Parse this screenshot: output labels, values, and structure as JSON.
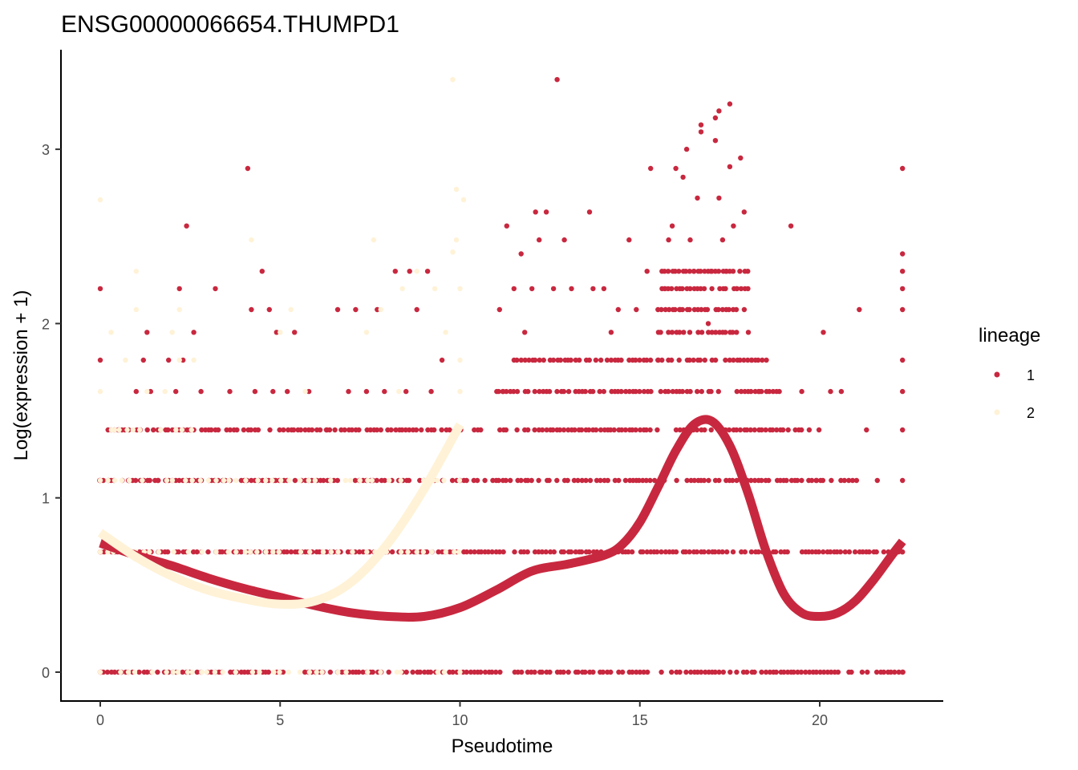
{
  "chart_data": {
    "type": "scatter",
    "title": "ENSG00000066654.THUMPD1",
    "xlabel": "Pseudotime",
    "ylabel": "Log(expression + 1)",
    "xlim": [
      -1.1,
      23.4
    ],
    "ylim": [
      -0.17,
      3.56
    ],
    "x_ticks": [
      "0",
      "5",
      "10",
      "15",
      "20"
    ],
    "y_ticks": [
      "0",
      "1",
      "2",
      "3"
    ],
    "grid": false,
    "legend": {
      "title": "lineage",
      "position": "right"
    },
    "series": [
      {
        "name": "1",
        "color": "#C8283F",
        "points_description": "scatter of cells on lineage 1 (pseudotime 0-22.3)",
        "points": [
          [
            0.0,
            2.2
          ],
          [
            0.0,
            1.79
          ],
          [
            0.0,
            1.1
          ],
          [
            0.0,
            0.69
          ],
          [
            0.0,
            0.0
          ],
          [
            0.5,
            1.39
          ],
          [
            0.8,
            1.1
          ],
          [
            1.0,
            1.61
          ],
          [
            1.2,
            1.79
          ],
          [
            1.3,
            1.95
          ],
          [
            1.4,
            1.61
          ],
          [
            1.6,
            1.1
          ],
          [
            1.8,
            0.69
          ],
          [
            1.9,
            1.79
          ],
          [
            2.1,
            1.61
          ],
          [
            2.2,
            2.2
          ],
          [
            2.3,
            1.79
          ],
          [
            2.4,
            2.56
          ],
          [
            2.5,
            1.39
          ],
          [
            2.6,
            1.95
          ],
          [
            2.8,
            1.61
          ],
          [
            3.2,
            2.2
          ],
          [
            3.6,
            1.61
          ],
          [
            4.1,
            2.89
          ],
          [
            4.2,
            2.08
          ],
          [
            4.5,
            2.3
          ],
          [
            4.3,
            1.61
          ],
          [
            4.7,
            2.08
          ],
          [
            4.9,
            1.95
          ],
          [
            4.8,
            1.61
          ],
          [
            5.2,
            1.61
          ],
          [
            5.4,
            1.95
          ],
          [
            5.8,
            1.61
          ],
          [
            6.3,
            1.39
          ],
          [
            6.6,
            2.08
          ],
          [
            6.9,
            1.61
          ],
          [
            7.1,
            2.08
          ],
          [
            7.4,
            1.61
          ],
          [
            7.7,
            2.08
          ],
          [
            7.9,
            1.61
          ],
          [
            8.2,
            2.3
          ],
          [
            8.5,
            1.61
          ],
          [
            8.6,
            2.3
          ],
          [
            8.8,
            2.08
          ],
          [
            9.1,
            2.3
          ],
          [
            9.2,
            1.61
          ],
          [
            9.5,
            1.79
          ],
          [
            11.1,
            2.08
          ],
          [
            11.2,
            1.61
          ],
          [
            11.3,
            2.56
          ],
          [
            11.5,
            2.2
          ],
          [
            11.7,
            2.4
          ],
          [
            11.8,
            1.95
          ],
          [
            12.0,
            2.2
          ],
          [
            12.1,
            2.64
          ],
          [
            12.2,
            2.48
          ],
          [
            12.4,
            2.64
          ],
          [
            12.6,
            2.2
          ],
          [
            12.7,
            3.4
          ],
          [
            12.9,
            2.48
          ],
          [
            13.0,
            1.79
          ],
          [
            13.1,
            2.2
          ],
          [
            13.4,
            1.61
          ],
          [
            13.6,
            2.64
          ],
          [
            13.7,
            2.2
          ],
          [
            14.0,
            2.2
          ],
          [
            14.2,
            1.95
          ],
          [
            14.4,
            2.08
          ],
          [
            14.7,
            2.48
          ],
          [
            14.9,
            2.08
          ],
          [
            15.2,
            2.3
          ],
          [
            15.3,
            2.89
          ],
          [
            15.5,
            1.79
          ],
          [
            15.7,
            2.2
          ],
          [
            15.8,
            2.48
          ],
          [
            15.9,
            2.56
          ],
          [
            16.0,
            2.89
          ],
          [
            16.1,
            2.08
          ],
          [
            16.2,
            2.84
          ],
          [
            16.3,
            3.0
          ],
          [
            16.4,
            2.48
          ],
          [
            16.5,
            2.3
          ],
          [
            16.6,
            2.72
          ],
          [
            16.7,
            3.1
          ],
          [
            16.7,
            3.14
          ],
          [
            16.9,
            2.0
          ],
          [
            17.0,
            2.3
          ],
          [
            17.1,
            3.05
          ],
          [
            17.1,
            3.18
          ],
          [
            17.2,
            3.22
          ],
          [
            17.2,
            2.72
          ],
          [
            17.3,
            2.48
          ],
          [
            17.4,
            2.3
          ],
          [
            17.5,
            3.26
          ],
          [
            17.5,
            2.9
          ],
          [
            17.6,
            2.56
          ],
          [
            17.7,
            2.2
          ],
          [
            17.8,
            2.95
          ],
          [
            17.9,
            2.64
          ],
          [
            18.0,
            2.3
          ],
          [
            18.1,
            1.79
          ],
          [
            18.3,
            1.61
          ],
          [
            18.8,
            1.61
          ],
          [
            19.2,
            2.56
          ],
          [
            19.5,
            1.61
          ],
          [
            19.9,
            1.1
          ],
          [
            20.1,
            1.95
          ],
          [
            20.3,
            1.61
          ],
          [
            20.6,
            1.61
          ],
          [
            21.1,
            2.08
          ],
          [
            21.3,
            1.39
          ],
          [
            21.6,
            1.1
          ],
          [
            22.3,
            2.89
          ],
          [
            22.3,
            2.4
          ],
          [
            22.3,
            2.3
          ],
          [
            22.3,
            2.2
          ],
          [
            22.3,
            2.08
          ],
          [
            22.3,
            1.79
          ],
          [
            22.3,
            1.61
          ],
          [
            22.3,
            1.39
          ],
          [
            22.3,
            1.1
          ],
          [
            22.3,
            0.69
          ],
          [
            22.3,
            0.0
          ]
        ]
      },
      {
        "name": "2",
        "color": "#FFF2D6",
        "points_description": "scatter of cells on lineage 2 (pseudotime 0-10.1)",
        "points": [
          [
            0.0,
            2.71
          ],
          [
            0.0,
            1.61
          ],
          [
            0.0,
            1.1
          ],
          [
            0.0,
            0.69
          ],
          [
            0.0,
            0.0
          ],
          [
            0.3,
            1.95
          ],
          [
            0.4,
            1.39
          ],
          [
            0.7,
            1.79
          ],
          [
            1.0,
            2.3
          ],
          [
            1.0,
            2.08
          ],
          [
            1.1,
            1.39
          ],
          [
            1.3,
            1.61
          ],
          [
            1.8,
            1.61
          ],
          [
            2.0,
            1.95
          ],
          [
            2.2,
            2.08
          ],
          [
            2.2,
            1.79
          ],
          [
            2.6,
            1.79
          ],
          [
            4.2,
            2.48
          ],
          [
            4.6,
            1.1
          ],
          [
            4.8,
            0.69
          ],
          [
            5.0,
            1.95
          ],
          [
            5.3,
            2.08
          ],
          [
            5.7,
            1.61
          ],
          [
            7.4,
            1.95
          ],
          [
            7.6,
            2.48
          ],
          [
            7.8,
            2.08
          ],
          [
            8.3,
            1.61
          ],
          [
            8.4,
            2.2
          ],
          [
            8.8,
            2.3
          ],
          [
            9.3,
            2.2
          ],
          [
            9.6,
            1.95
          ],
          [
            9.8,
            3.4
          ],
          [
            9.8,
            2.41
          ],
          [
            9.9,
            2.48
          ],
          [
            9.9,
            2.77
          ],
          [
            10.0,
            2.2
          ],
          [
            10.0,
            1.61
          ],
          [
            10.1,
            2.71
          ],
          [
            10.0,
            1.79
          ],
          [
            10.0,
            0.0
          ]
        ]
      }
    ],
    "dense_rows": {
      "lineage1": [
        {
          "y": 0.0,
          "x_range": [
            0.0,
            22.3
          ]
        },
        {
          "y": 0.69,
          "x_range": [
            0.0,
            22.3
          ]
        },
        {
          "y": 1.1,
          "x_range": [
            0.0,
            21.0
          ]
        },
        {
          "y": 1.39,
          "x_range": [
            0.2,
            20.0
          ]
        },
        {
          "y": 1.61,
          "x_range": [
            11.0,
            19.0
          ]
        },
        {
          "y": 1.79,
          "x_range": [
            11.5,
            18.5
          ]
        },
        {
          "y": 1.95,
          "x_range": [
            15.5,
            18.0
          ]
        },
        {
          "y": 2.08,
          "x_range": [
            15.5,
            18.0
          ]
        },
        {
          "y": 2.2,
          "x_range": [
            15.5,
            18.0
          ]
        },
        {
          "y": 2.3,
          "x_range": [
            15.6,
            17.9
          ]
        }
      ],
      "lineage2": [
        {
          "y": 0.0,
          "x_range": [
            0.0,
            10.0
          ]
        },
        {
          "y": 0.69,
          "x_range": [
            0.0,
            10.0
          ]
        },
        {
          "y": 1.1,
          "x_range": [
            0.0,
            10.0
          ]
        },
        {
          "y": 1.39,
          "x_range": [
            0.3,
            2.5
          ]
        }
      ]
    },
    "curves": [
      {
        "name": "1",
        "color": "#C8283F",
        "x": [
          0,
          1,
          2,
          3,
          4,
          5,
          6,
          7,
          8,
          9,
          10,
          11,
          12,
          13,
          14,
          14.5,
          15,
          15.5,
          16,
          16.5,
          17,
          17.5,
          18,
          18.5,
          19,
          19.5,
          20,
          20.5,
          21,
          21.5,
          22,
          22.3
        ],
        "y": [
          0.74,
          0.67,
          0.61,
          0.54,
          0.48,
          0.43,
          0.38,
          0.34,
          0.32,
          0.32,
          0.37,
          0.47,
          0.58,
          0.62,
          0.67,
          0.73,
          0.86,
          1.06,
          1.27,
          1.42,
          1.44,
          1.3,
          1.03,
          0.7,
          0.45,
          0.34,
          0.32,
          0.34,
          0.41,
          0.53,
          0.67,
          0.75
        ]
      },
      {
        "name": "2",
        "color": "#FFF2D6",
        "x": [
          0,
          1,
          2,
          3,
          4,
          5,
          6,
          7,
          8,
          9,
          10
        ],
        "y": [
          0.8,
          0.66,
          0.55,
          0.47,
          0.42,
          0.39,
          0.41,
          0.52,
          0.74,
          1.05,
          1.42
        ]
      }
    ]
  }
}
